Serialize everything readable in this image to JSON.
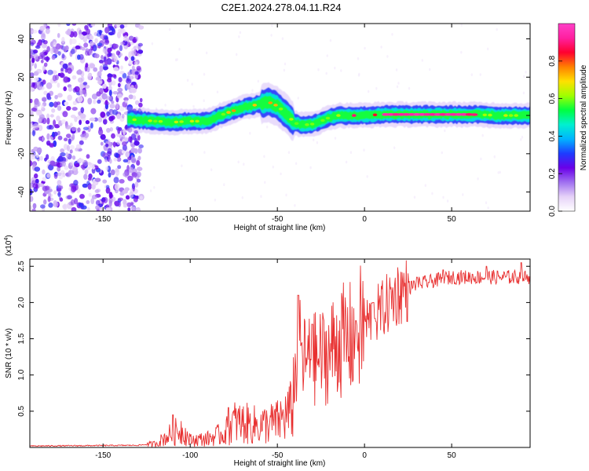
{
  "title": "C2E1.2024.278.04.11.R24",
  "chart_data": [
    {
      "type": "heatmap",
      "xlabel": "Height of straight line (km)",
      "ylabel": "Frequency (Hz)",
      "xlim": [
        -192,
        95
      ],
      "ylim": [
        -50,
        48
      ],
      "xticks": [
        -150,
        -100,
        -50,
        0,
        50
      ],
      "yticks": [
        -40,
        -20,
        0,
        20,
        40
      ],
      "colorbar": {
        "label": "Normalized spectral amplitude",
        "range": [
          0,
          1
        ],
        "ticks": [
          "0.0",
          "0.2",
          "0.4",
          "0.6",
          "0.8"
        ],
        "colormap": [
          "#ffffff",
          "#e6d2f8",
          "#a070f0",
          "#6a00e8",
          "#1e3cff",
          "#00b4ff",
          "#00f0d0",
          "#00ff40",
          "#a0ff00",
          "#ffe000",
          "#ff8000",
          "#ff0030",
          "#ff20a0",
          "#ff40c8"
        ]
      },
      "noise_region_x": [
        -192,
        -128
      ],
      "signal_ridge": {
        "x": [
          -136,
          -120,
          -110,
          -100,
          -90,
          -80,
          -70,
          -60,
          -55,
          -50,
          -45,
          -40,
          -35,
          -30,
          -25,
          -20,
          -15,
          -10,
          0,
          10,
          20,
          40,
          60,
          80,
          95
        ],
        "freq": [
          -2,
          -3,
          -3.5,
          -3,
          -3,
          1,
          4,
          6,
          7,
          5,
          1,
          -4,
          -5,
          -4.5,
          -3,
          -1,
          0,
          0,
          0,
          0.5,
          0.5,
          0.5,
          0.5,
          0,
          0
        ]
      }
    },
    {
      "type": "line",
      "xlabel": "Height of straight line (km)",
      "ylabel": "SNR (10 * v/v)",
      "scale_label": "(x10",
      "scale_exponent": "4",
      "scale_close": ")",
      "xlim": [
        -192,
        95
      ],
      "ylim": [
        0,
        2.6
      ],
      "xticks": [
        -150,
        -100,
        -50,
        0,
        50
      ],
      "yticks": [
        "0.5",
        "1.0",
        "1.5",
        "2.0",
        "2.5"
      ],
      "series": [
        {
          "color": "#e83030",
          "envelope_x": [
            -192,
            -130,
            -120,
            -110,
            -105,
            -100,
            -90,
            -80,
            -75,
            -60,
            -50,
            -42,
            -38,
            -35,
            -30,
            -20,
            -15,
            -10,
            0,
            10,
            20,
            30,
            40,
            50,
            60,
            70,
            80,
            90,
            95
          ],
          "envelope_y": [
            0.02,
            0.03,
            0.05,
            0.2,
            0.25,
            0.1,
            0.12,
            0.2,
            0.35,
            0.3,
            0.35,
            0.5,
            1.4,
            1.2,
            1.2,
            1.3,
            1.5,
            1.45,
            1.7,
            1.9,
            2.15,
            2.25,
            2.3,
            2.35,
            2.35,
            2.35,
            2.35,
            2.35,
            2.35
          ],
          "peaks": [
            [
              -110,
              0.45
            ],
            [
              -78,
              0.55
            ],
            [
              -38,
              2.1
            ],
            [
              -30,
              1.7
            ],
            [
              -5,
              1.75
            ],
            [
              5,
              2.0
            ],
            [
              30,
              2.35
            ],
            [
              45,
              2.45
            ],
            [
              70,
              2.5
            ],
            [
              90,
              2.55
            ]
          ]
        }
      ]
    }
  ]
}
